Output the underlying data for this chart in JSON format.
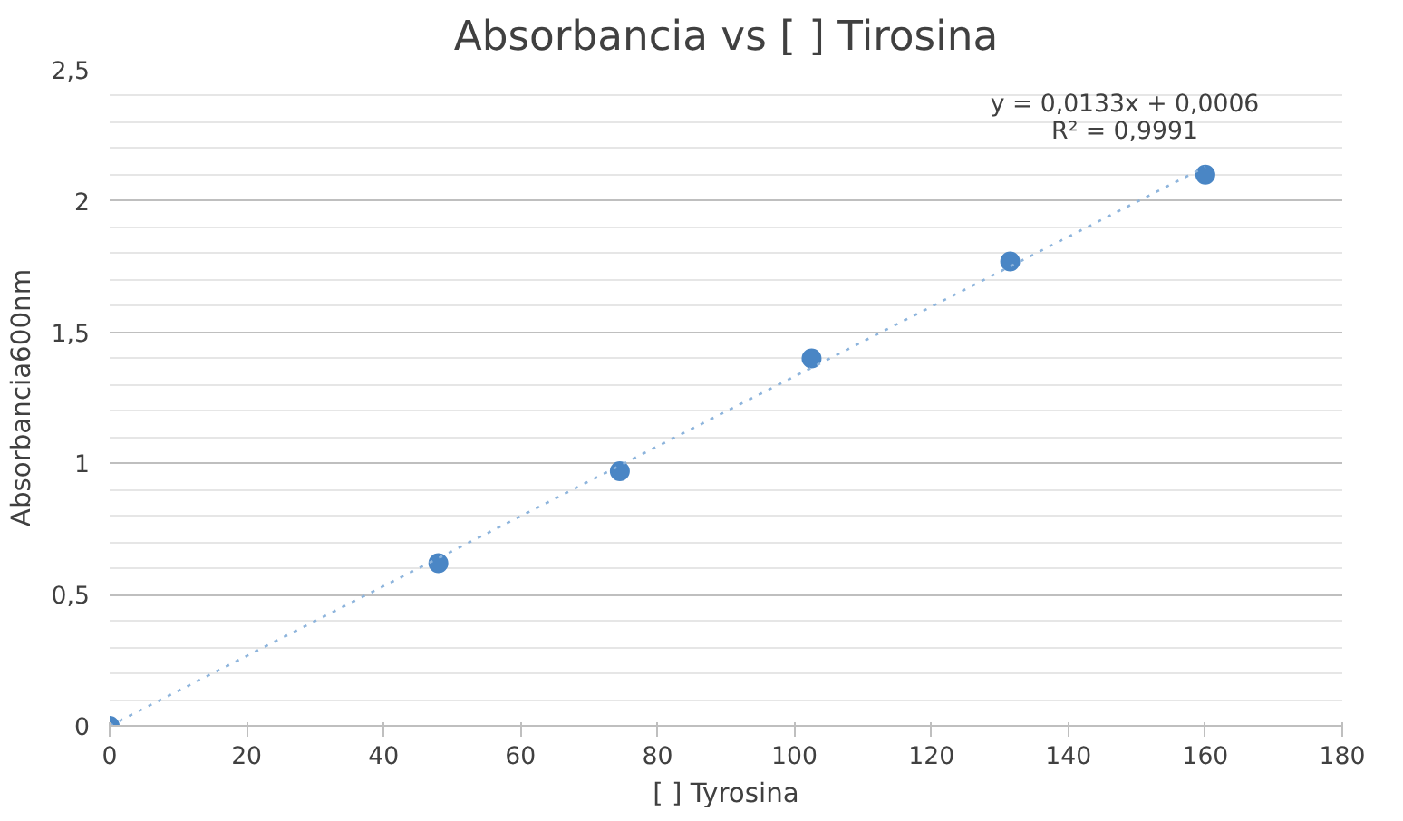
{
  "chart_data": {
    "type": "scatter",
    "title": "Absorbancia vs [ ] Tirosina",
    "xlabel": "[ ] Tyrosina",
    "ylabel": "Absorbancia600nm",
    "xlim": [
      0,
      180
    ],
    "xticks": [
      0,
      20,
      40,
      60,
      80,
      100,
      120,
      140,
      160,
      180
    ],
    "ylim": [
      0,
      2.5
    ],
    "yticks": [
      0,
      {
        "value": 0.1,
        "label": null
      },
      {
        "value": 0.2,
        "label": null
      },
      {
        "value": 0.3,
        "label": null
      },
      {
        "value": 0.4,
        "label": null
      },
      {
        "value": 0.5,
        "label": "0,5"
      },
      {
        "value": 0.6,
        "label": null
      },
      {
        "value": 0.7,
        "label": null
      },
      {
        "value": 0.8,
        "label": null
      },
      {
        "value": 0.9,
        "label": null
      },
      1,
      {
        "value": 1.1,
        "label": null
      },
      {
        "value": 1.2,
        "label": null
      },
      {
        "value": 1.3,
        "label": null
      },
      {
        "value": 1.4,
        "label": null
      },
      {
        "value": 1.5,
        "label": "1,5"
      },
      {
        "value": 1.6,
        "label": null
      },
      {
        "value": 1.7,
        "label": null
      },
      {
        "value": 1.8,
        "label": null
      },
      {
        "value": 1.9,
        "label": null
      },
      2,
      {
        "value": 2.1,
        "label": null
      },
      {
        "value": 2.2,
        "label": null
      },
      {
        "value": 2.3,
        "label": null
      },
      {
        "value": 2.4,
        "label": null
      },
      {
        "value": 2.5,
        "label": "2,5"
      }
    ],
    "grid": "y",
    "marker": "circle",
    "series": [
      {
        "color": "#4a86c5",
        "x": [
          0,
          48,
          74.5,
          102.5,
          131.5,
          160
        ],
        "values": [
          0,
          0.62,
          0.97,
          1.4,
          1.77,
          2.1
        ]
      },
      {
        "type": "line",
        "color": "#8db4dc",
        "line_style": "dotted",
        "marker": "none",
        "x": [
          0,
          160
        ],
        "values": [
          0,
          2.13
        ]
      }
    ],
    "annotations": [
      "y = 0,0133x + 0,0006",
      "R² = 0,9991"
    ]
  }
}
